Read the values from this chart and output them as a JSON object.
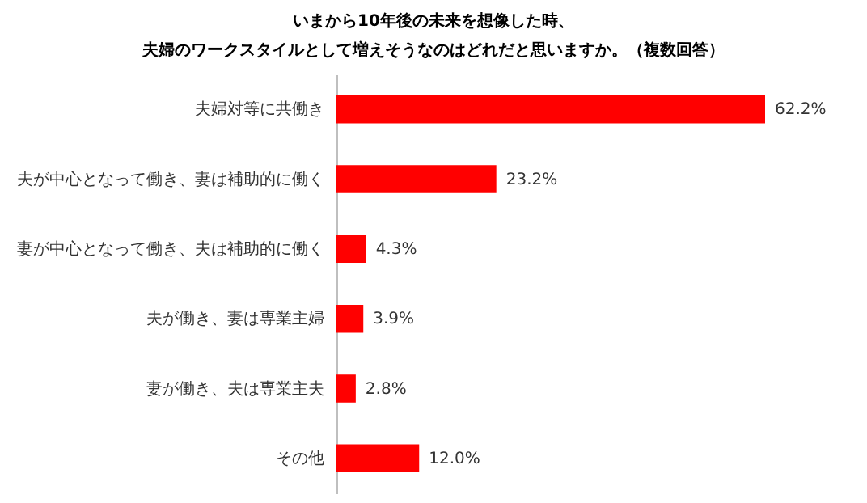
{
  "chart_data": {
    "type": "bar",
    "orientation": "horizontal",
    "title": "いまから10年後の未来を想像した時、",
    "subtitle": "夫婦のワークスタイルとして増えそうなのはどれだと思いますか。（複数回答）",
    "categories": [
      "夫婦対等に共働き",
      "夫が中心となって働き、妻は補助的に働く",
      "妻が中心となって働き、夫は補助的に働く",
      "夫が働き、妻は専業主婦",
      "妻が働き、夫は専業主夫",
      "その他"
    ],
    "values": [
      62.2,
      23.2,
      4.3,
      3.9,
      2.8,
      12.0
    ],
    "value_labels": [
      "62.2%",
      "23.2%",
      "4.3%",
      "3.9%",
      "2.8%",
      "12.0%"
    ],
    "color": "#ff0000"
  }
}
